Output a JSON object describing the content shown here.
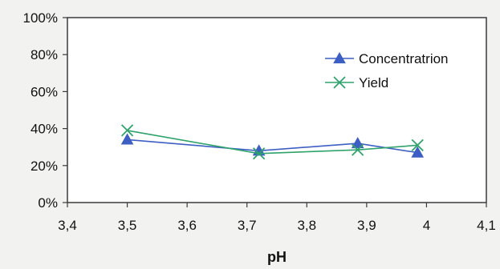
{
  "chart_data": {
    "type": "line",
    "title": "",
    "xlabel": "pH",
    "ylabel": "",
    "xlim": [
      3.4,
      4.1
    ],
    "ylim": [
      0,
      100
    ],
    "x_ticks": [
      "3,4",
      "3,5",
      "3,6",
      "3,7",
      "3,8",
      "3,9",
      "4",
      "4,1"
    ],
    "x_tick_values": [
      3.4,
      3.5,
      3.6,
      3.7,
      3.8,
      3.9,
      4.0,
      4.1
    ],
    "y_ticks": [
      "0%",
      "20%",
      "40%",
      "60%",
      "80%",
      "100%"
    ],
    "y_tick_values": [
      0,
      20,
      40,
      60,
      80,
      100
    ],
    "grid": false,
    "legend_position": "top-right",
    "series": [
      {
        "name": "Concentratrion",
        "marker": "triangle",
        "color": "#3d5fc4",
        "x": [
          3.5,
          3.72,
          3.885,
          3.985
        ],
        "y": [
          34,
          28,
          32,
          27
        ]
      },
      {
        "name": "Yield",
        "marker": "x",
        "color": "#2fa36b",
        "x": [
          3.5,
          3.72,
          3.885,
          3.985
        ],
        "y": [
          39,
          26.5,
          28.5,
          31
        ]
      }
    ]
  }
}
